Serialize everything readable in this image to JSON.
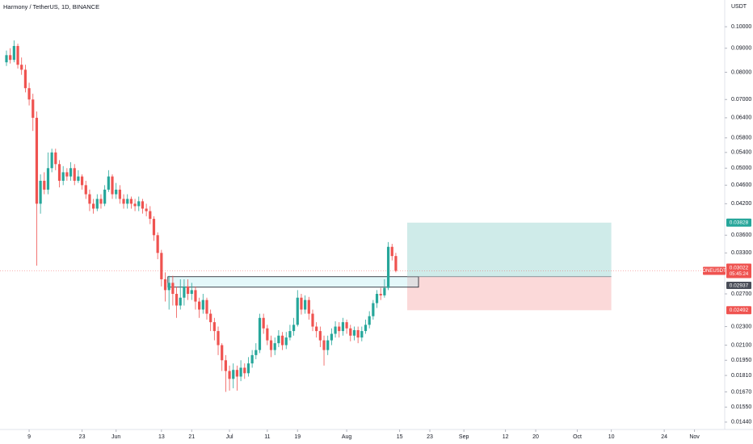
{
  "chart_data": {
    "type": "candlestick",
    "title": "Harmony / TetherUS, 1D, BINANCE",
    "axis_unit": "USDT",
    "log_scale": true,
    "up_color": "#26a69a",
    "down_color": "#ef5350",
    "ylim": [
      0.01389,
      0.114
    ],
    "yticks": [
      {
        "value": 0.1,
        "label": "0.10000"
      },
      {
        "value": 0.09,
        "label": "0.09000"
      },
      {
        "value": 0.08,
        "label": "0.08000"
      },
      {
        "value": 0.07,
        "label": "0.07000"
      },
      {
        "value": 0.064,
        "label": "0.06400"
      },
      {
        "value": 0.058,
        "label": "0.05800"
      },
      {
        "value": 0.054,
        "label": "0.05400"
      },
      {
        "value": 0.05,
        "label": "0.05000"
      },
      {
        "value": 0.046,
        "label": "0.04600"
      },
      {
        "value": 0.042,
        "label": "0.04200"
      },
      {
        "value": 0.036,
        "label": "0.03600"
      },
      {
        "value": 0.033,
        "label": "0.03300"
      },
      {
        "value": 0.027,
        "label": "0.02700"
      },
      {
        "value": 0.023,
        "label": "0.02300"
      },
      {
        "value": 0.021,
        "label": "0.02100"
      },
      {
        "value": 0.0195,
        "label": "0.01950"
      },
      {
        "value": 0.0181,
        "label": "0.01810"
      },
      {
        "value": 0.0167,
        "label": "0.01670"
      },
      {
        "value": 0.0155,
        "label": "0.01550"
      },
      {
        "value": 0.0144,
        "label": "0.01440"
      }
    ],
    "xlim": [
      -1.71,
      190
    ],
    "xticks": [
      {
        "value": 6,
        "label": "9"
      },
      {
        "value": 20,
        "label": "23"
      },
      {
        "value": 29,
        "label": "Jun"
      },
      {
        "value": 41,
        "label": "13"
      },
      {
        "value": 49,
        "label": "21"
      },
      {
        "value": 59,
        "label": "Jul"
      },
      {
        "value": 69,
        "label": "11"
      },
      {
        "value": 77,
        "label": "19"
      },
      {
        "value": 90,
        "label": "Aug"
      },
      {
        "value": 104,
        "label": "15"
      },
      {
        "value": 112,
        "label": "23"
      },
      {
        "value": 121,
        "label": "Sep"
      },
      {
        "value": 132,
        "label": "12"
      },
      {
        "value": 140,
        "label": "20"
      },
      {
        "value": 151,
        "label": "Oct"
      },
      {
        "value": 160,
        "label": "10"
      },
      {
        "value": 174,
        "label": "24"
      },
      {
        "value": 182,
        "label": "Nov"
      }
    ],
    "open": [
      0.084,
      0.087,
      0.085,
      0.091,
      0.083,
      0.081,
      0.074,
      0.07,
      0.064,
      0.042,
      0.047,
      0.045,
      0.05,
      0.054,
      0.051,
      0.047,
      0.049,
      0.048,
      0.05,
      0.047,
      0.048,
      0.046,
      0.044,
      0.042,
      0.041,
      0.043,
      0.042,
      0.045,
      0.048,
      0.044,
      0.045,
      0.043,
      0.042,
      0.043,
      0.042,
      0.0415,
      0.0425,
      0.041,
      0.0405,
      0.039,
      0.036,
      0.033,
      0.029,
      0.0275,
      0.0285,
      0.027,
      0.0255,
      0.0265,
      0.028,
      0.027,
      0.0275,
      0.026,
      0.025,
      0.0262,
      0.0245,
      0.0235,
      0.0225,
      0.021,
      0.0195,
      0.0185,
      0.0178,
      0.0186,
      0.018,
      0.0188,
      0.0183,
      0.0192,
      0.02,
      0.0205,
      0.024,
      0.0228,
      0.0215,
      0.0205,
      0.0212,
      0.022,
      0.021,
      0.0218,
      0.0225,
      0.0232,
      0.0265,
      0.025,
      0.0262,
      0.0245,
      0.023,
      0.0225,
      0.0215,
      0.0205,
      0.0215,
      0.0222,
      0.023,
      0.0225,
      0.0235,
      0.0228,
      0.022,
      0.0226,
      0.0218,
      0.0225,
      0.0232,
      0.0242,
      0.0258,
      0.027,
      0.0268,
      0.0278,
      0.034,
      0.0325
    ],
    "high": [
      0.089,
      0.09,
      0.0935,
      0.092,
      0.086,
      0.083,
      0.076,
      0.072,
      0.066,
      0.0485,
      0.049,
      0.054,
      0.055,
      0.055,
      0.052,
      0.0505,
      0.05,
      0.0515,
      0.051,
      0.0495,
      0.0485,
      0.047,
      0.045,
      0.043,
      0.044,
      0.044,
      0.046,
      0.0495,
      0.0485,
      0.0465,
      0.046,
      0.044,
      0.044,
      0.0435,
      0.043,
      0.0435,
      0.043,
      0.042,
      0.0415,
      0.0395,
      0.0365,
      0.0335,
      0.03,
      0.0295,
      0.0295,
      0.028,
      0.029,
      0.029,
      0.029,
      0.0285,
      0.028,
      0.0265,
      0.027,
      0.0265,
      0.025,
      0.024,
      0.023,
      0.0212,
      0.02,
      0.019,
      0.0192,
      0.019,
      0.0195,
      0.0192,
      0.0198,
      0.0205,
      0.0212,
      0.0245,
      0.0245,
      0.0232,
      0.022,
      0.0218,
      0.0226,
      0.0224,
      0.0224,
      0.0232,
      0.024,
      0.0275,
      0.027,
      0.0268,
      0.0266,
      0.025,
      0.0235,
      0.023,
      0.022,
      0.022,
      0.0228,
      0.0236,
      0.0235,
      0.024,
      0.0238,
      0.0232,
      0.023,
      0.023,
      0.023,
      0.0238,
      0.0248,
      0.0262,
      0.0275,
      0.0278,
      0.029,
      0.0348,
      0.0345,
      0.033
    ],
    "low": [
      0.0825,
      0.0835,
      0.084,
      0.0815,
      0.079,
      0.0725,
      0.068,
      0.06,
      0.031,
      0.04,
      0.044,
      0.044,
      0.049,
      0.0495,
      0.0455,
      0.046,
      0.047,
      0.047,
      0.046,
      0.0465,
      0.045,
      0.043,
      0.0405,
      0.04,
      0.0405,
      0.041,
      0.0415,
      0.0445,
      0.043,
      0.043,
      0.042,
      0.041,
      0.041,
      0.041,
      0.0405,
      0.0405,
      0.04,
      0.0395,
      0.038,
      0.035,
      0.032,
      0.028,
      0.026,
      0.025,
      0.0255,
      0.024,
      0.025,
      0.0255,
      0.0262,
      0.0262,
      0.025,
      0.024,
      0.0245,
      0.0238,
      0.0225,
      0.0215,
      0.02,
      0.0185,
      0.0167,
      0.0168,
      0.017,
      0.0168,
      0.0176,
      0.0178,
      0.018,
      0.0188,
      0.0196,
      0.0202,
      0.0222,
      0.021,
      0.0198,
      0.02,
      0.0208,
      0.0205,
      0.0206,
      0.0215,
      0.022,
      0.023,
      0.0244,
      0.0245,
      0.0238,
      0.0225,
      0.0218,
      0.0208,
      0.019,
      0.02,
      0.021,
      0.0218,
      0.0218,
      0.022,
      0.0222,
      0.0214,
      0.0215,
      0.0212,
      0.0214,
      0.0222,
      0.0228,
      0.0238,
      0.0252,
      0.0262,
      0.0265,
      0.0275,
      0.0318,
      0.03
    ],
    "close": [
      0.087,
      0.085,
      0.091,
      0.083,
      0.081,
      0.074,
      0.07,
      0.064,
      0.042,
      0.047,
      0.045,
      0.05,
      0.054,
      0.051,
      0.047,
      0.049,
      0.048,
      0.05,
      0.047,
      0.048,
      0.046,
      0.044,
      0.042,
      0.041,
      0.043,
      0.042,
      0.045,
      0.048,
      0.044,
      0.045,
      0.043,
      0.042,
      0.043,
      0.042,
      0.0415,
      0.0425,
      0.041,
      0.0405,
      0.039,
      0.036,
      0.033,
      0.029,
      0.0275,
      0.0285,
      0.027,
      0.0255,
      0.0265,
      0.028,
      0.027,
      0.0275,
      0.026,
      0.025,
      0.0262,
      0.0245,
      0.0235,
      0.0225,
      0.021,
      0.0195,
      0.0185,
      0.0178,
      0.0186,
      0.018,
      0.0188,
      0.0183,
      0.0192,
      0.02,
      0.0205,
      0.024,
      0.0228,
      0.0215,
      0.0205,
      0.0212,
      0.022,
      0.021,
      0.0218,
      0.0225,
      0.0232,
      0.0265,
      0.025,
      0.0262,
      0.0245,
      0.023,
      0.0225,
      0.0215,
      0.0205,
      0.0215,
      0.0222,
      0.023,
      0.0225,
      0.0235,
      0.0228,
      0.022,
      0.0226,
      0.0218,
      0.0225,
      0.0232,
      0.0242,
      0.0258,
      0.027,
      0.0268,
      0.0278,
      0.034,
      0.0325,
      0.03022
    ],
    "price_line": {
      "symbol": "ONEUSDT",
      "value": 0.03022,
      "value_label": "0.03022",
      "countdown": "05:45:24"
    },
    "position": {
      "target": 0.03828,
      "target_label": "0.03828",
      "entry": 0.02937,
      "entry_label": "0.02937",
      "stop": 0.02492,
      "stop_label": "0.02492",
      "start": 106,
      "end": 160
    },
    "zone": {
      "top": 0.02937,
      "bottom": 0.0279,
      "start": 42.7,
      "end": 109
    }
  }
}
